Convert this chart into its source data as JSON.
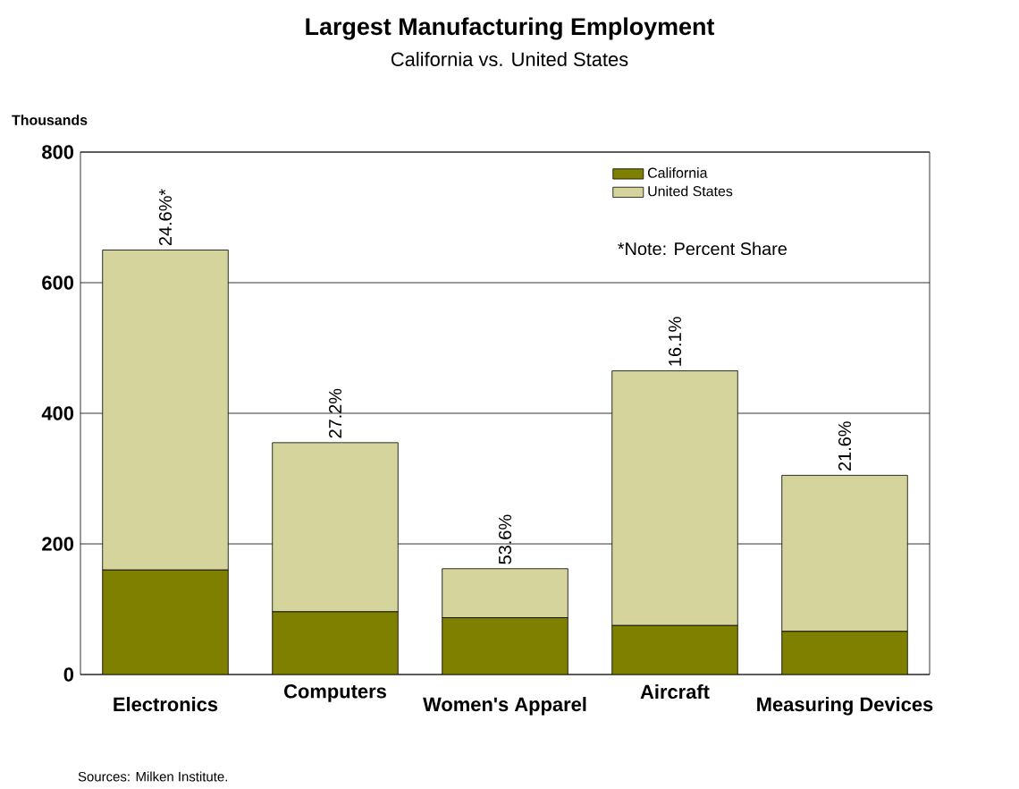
{
  "chart_data": {
    "type": "bar",
    "title": "Largest Manufacturing Employment",
    "subtitle": "California vs. United States",
    "ylabel": "Thousands",
    "categories": [
      "Electronics",
      "Computers",
      "Women's Apparel",
      "Aircraft",
      "Measuring Devices"
    ],
    "stacked": true,
    "series": [
      {
        "name": "California",
        "color": "#7f7f00",
        "values": [
          160,
          96,
          87,
          75,
          66
        ]
      },
      {
        "name": "United States",
        "color": "#d4d49c",
        "values": [
          490,
          259,
          75,
          390,
          239
        ]
      }
    ],
    "ylim": [
      0,
      800
    ],
    "yticks": [
      0,
      200,
      400,
      600,
      800
    ],
    "grid": "y",
    "legend": "top right",
    "annotations": [
      {
        "text": "24.6%*",
        "x": "Electronics",
        "y": 650
      },
      {
        "text": "27.2%",
        "x": "Computers",
        "y": 355
      },
      {
        "text": "53.6%",
        "x": "Women's Apparel",
        "y": 162
      },
      {
        "text": "16.1%",
        "x": "Aircraft",
        "y": 465
      },
      {
        "text": "21.6%",
        "x": "Measuring Devices",
        "y": 305
      },
      "*Note: Percent Share",
      "Sources: Milken Institute."
    ]
  }
}
